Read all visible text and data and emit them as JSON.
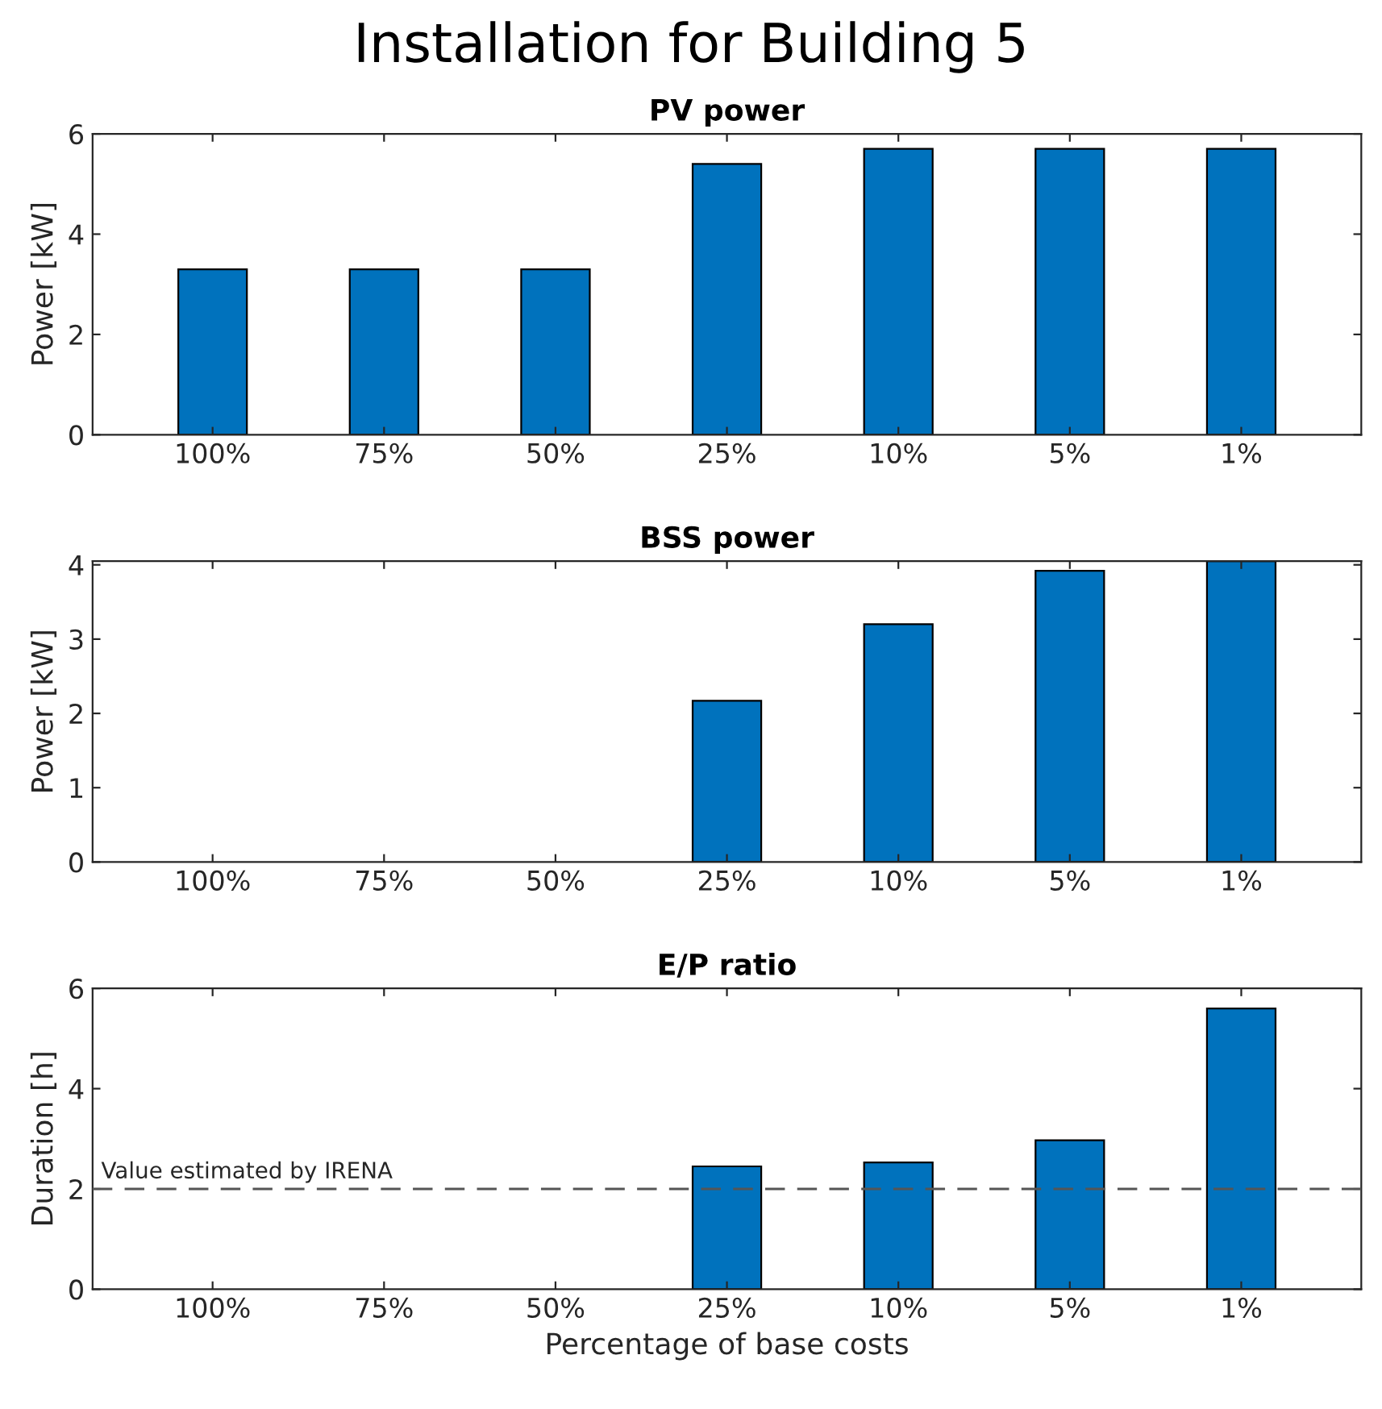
{
  "chart_data": [
    {
      "type": "bar",
      "title": "Installation for Building 5",
      "subtitle": "PV power",
      "ylabel": "Power [kW]",
      "categories": [
        "100%",
        "75%",
        "50%",
        "25%",
        "10%",
        "5%",
        "1%"
      ],
      "values": [
        3.3,
        3.3,
        3.3,
        5.4,
        5.7,
        5.7,
        5.7
      ],
      "color": "#0072bd",
      "ylim": [
        0,
        6
      ],
      "yticks": [
        0,
        2,
        4,
        6
      ],
      "grid": false,
      "legend": false
    },
    {
      "type": "bar",
      "title": "BSS power",
      "ylabel": "Power [kW]",
      "categories": [
        "100%",
        "75%",
        "50%",
        "25%",
        "10%",
        "5%",
        "1%"
      ],
      "values": [
        null,
        null,
        null,
        2.17,
        3.2,
        3.92,
        4.05
      ],
      "color": "#0072bd",
      "ylim": [
        0,
        4.05
      ],
      "yticks": [
        0,
        1,
        2,
        3,
        4
      ],
      "grid": false,
      "legend": false
    },
    {
      "type": "bar",
      "title": "E/P ratio",
      "ylabel": "Duration [h]",
      "xlabel": "Percentage of base costs",
      "categories": [
        "100%",
        "75%",
        "50%",
        "25%",
        "10%",
        "5%",
        "1%"
      ],
      "values": [
        null,
        null,
        null,
        2.45,
        2.53,
        2.97,
        5.6
      ],
      "color": "#0072bd",
      "ylim": [
        0,
        6
      ],
      "yticks": [
        0,
        2,
        4,
        6
      ],
      "grid": false,
      "legend": false,
      "ref_lines": [
        {
          "axis": "y",
          "value": 2,
          "label": "Value estimated by IRENA",
          "color": "#555555",
          "line_style": "dashed"
        }
      ]
    }
  ]
}
